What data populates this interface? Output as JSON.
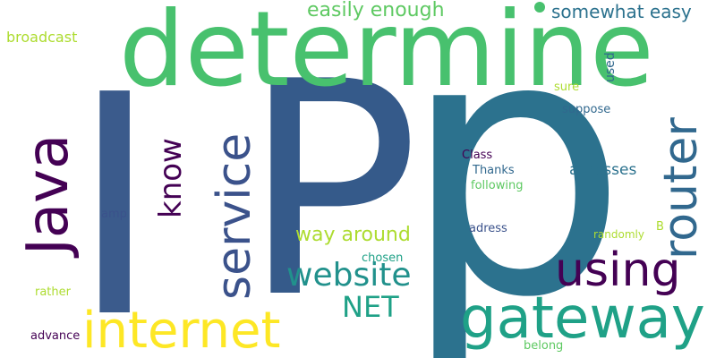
{
  "words": {
    "determine": "determine",
    "ip_i": "I",
    "ip_p_big": "P",
    "ip_p_small": "p",
    "java": "Java",
    "router": "router",
    "service": "service",
    "know": "know",
    "internet": "internet",
    "gateway": "gateway",
    "using": "using",
    "website": "website",
    "net": "NET",
    "way_around": "way around",
    "easily_enough": "easily enough",
    "somewhat_easy": "somewhat easy",
    "broadcast": "broadcast",
    "adresses": "adresses",
    "class": "Class",
    "thanks": "Thanks",
    "following": "following",
    "sure": "sure",
    "used": "used",
    "suppose": "suppose",
    "adress": "adress",
    "randomly": "randomly",
    "b": "B",
    "amp": "amp",
    "chosen": "chosen",
    "rather": "rather",
    "advance": "advance",
    "belong": "belong"
  },
  "colors": {
    "background": "#ffffff",
    "dark_purple": "#440154",
    "indigo": "#3b528b",
    "steel_blue": "#31688e",
    "blue_teal": "#2c728e",
    "teal": "#21918c",
    "green_teal": "#1fa187",
    "green": "#48c16e",
    "light_green": "#5ec962",
    "lime": "#addc30",
    "yellow": "#fde725"
  }
}
